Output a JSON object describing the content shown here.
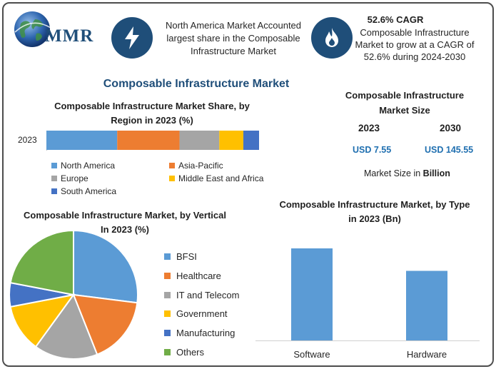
{
  "brand": {
    "logo_text": "MMR"
  },
  "highlights": {
    "market_text": "North America Market Accounted largest share in the Composable Infrastructure Market",
    "cagr_title": "52.6% CAGR",
    "cagr_text": "Composable Infrastructure Market to grow at a CAGR of 52.6% during 2024-2030"
  },
  "main_title": "Composable Infrastructure Market",
  "market_size": {
    "title": "Composable Infrastructure Market Size",
    "year1": "2023",
    "year2": "2030",
    "value1": "USD 7.55",
    "value2": "USD 145.55",
    "note_prefix": "Market Size in ",
    "note_unit": "Billion"
  },
  "colors": {
    "blue": "#5b9bd5",
    "orange": "#ed7d31",
    "gray": "#a5a5a5",
    "yellow": "#ffc000",
    "dark_blue": "#4472c4",
    "green": "#70ad47",
    "navy": "#1f4e79"
  },
  "chart_data": [
    {
      "type": "bar",
      "orientation": "horizontal-stacked",
      "title": "Composable Infrastructure Market Share, by Region in 2023 (%)",
      "categories": [
        "2023"
      ],
      "series": [
        {
          "name": "North America",
          "values": [
            33.3
          ]
        },
        {
          "name": "Asia-Pacific",
          "values": [
            29.3
          ]
        },
        {
          "name": "Europe",
          "values": [
            18.7
          ]
        },
        {
          "name": "Middle East and Africa",
          "values": [
            11.3
          ]
        },
        {
          "name": "South America",
          "values": [
            7.4
          ]
        }
      ],
      "legend": "bottom"
    },
    {
      "type": "pie",
      "title": "Composable Infrastructure Market, by Vertical In 2023 (%)",
      "labels": [
        "BFSI",
        "Healthcare",
        "IT and Telecom",
        "Government",
        "Manufacturing",
        "Others"
      ],
      "values": [
        27,
        17,
        16,
        12,
        6,
        22
      ],
      "legend": "right"
    },
    {
      "type": "bar",
      "title": "Composable Infrastructure Market, by Type in 2023 (Bn)",
      "categories": [
        "Software",
        "Hardware"
      ],
      "values": [
        4.3,
        3.25
      ],
      "ylim": [
        0,
        5
      ],
      "grid": false
    }
  ]
}
